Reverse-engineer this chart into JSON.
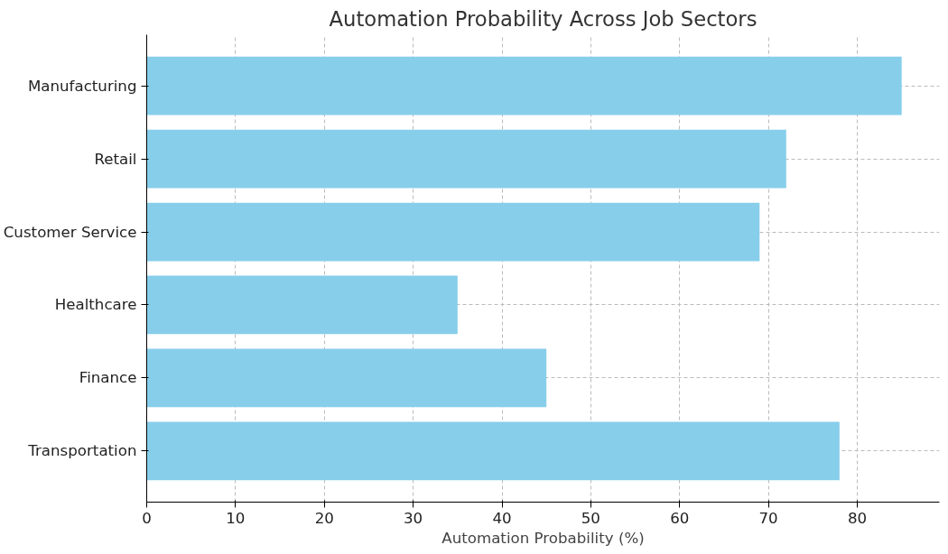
{
  "chart_data": {
    "type": "bar",
    "orientation": "horizontal",
    "title": "Automation Probability Across Job Sectors",
    "xlabel": "Automation Probability (%)",
    "categories": [
      "Manufacturing",
      "Retail",
      "Customer Service",
      "Healthcare",
      "Finance",
      "Transportation"
    ],
    "values": [
      85,
      72,
      69,
      35,
      45,
      78
    ],
    "color": "#87ceeb",
    "xlim": [
      0,
      89.25
    ],
    "xticks": [
      0,
      10,
      20,
      30,
      40,
      50,
      60,
      70,
      80
    ],
    "grid": true
  }
}
